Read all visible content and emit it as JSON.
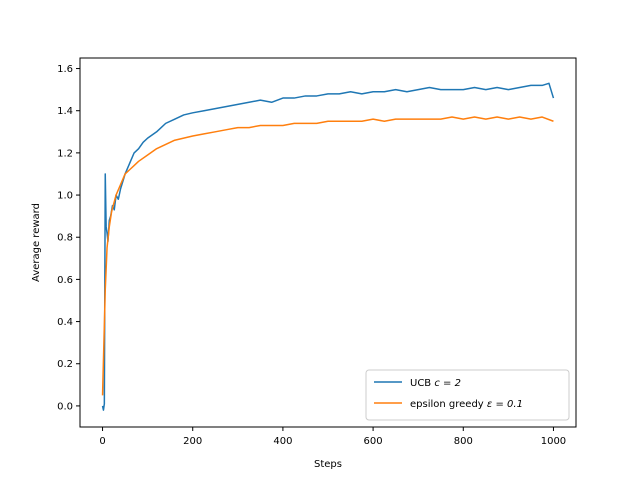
{
  "chart_data": {
    "type": "line",
    "title": "",
    "xlabel": "Steps",
    "ylabel": "Average reward",
    "xlim": [
      -50,
      1050
    ],
    "ylim": [
      -0.1,
      1.65
    ],
    "xticks": [
      0,
      200,
      400,
      600,
      800,
      1000
    ],
    "yticks": [
      0.0,
      0.2,
      0.4,
      0.6,
      0.8,
      1.0,
      1.2,
      1.4,
      1.6
    ],
    "grid": false,
    "legend_position": "lower-right",
    "series": [
      {
        "name": "UCB c = 2",
        "name_prefix": "UCB ",
        "name_math": "c = 2",
        "color": "#1f77b4",
        "x": [
          0,
          2,
          4,
          6,
          8,
          10,
          12,
          15,
          18,
          22,
          26,
          30,
          35,
          40,
          50,
          60,
          70,
          80,
          90,
          100,
          120,
          140,
          160,
          180,
          200,
          225,
          250,
          275,
          300,
          325,
          350,
          375,
          400,
          425,
          450,
          475,
          500,
          525,
          550,
          575,
          600,
          625,
          650,
          675,
          700,
          725,
          750,
          775,
          800,
          825,
          850,
          875,
          900,
          925,
          950,
          975,
          990,
          1000
        ],
        "values": [
          0.0,
          -0.02,
          0.01,
          1.1,
          0.85,
          0.82,
          0.78,
          0.88,
          0.9,
          0.95,
          0.93,
          1.0,
          0.98,
          1.03,
          1.1,
          1.15,
          1.2,
          1.22,
          1.25,
          1.27,
          1.3,
          1.34,
          1.36,
          1.38,
          1.39,
          1.4,
          1.41,
          1.42,
          1.43,
          1.44,
          1.45,
          1.44,
          1.46,
          1.46,
          1.47,
          1.47,
          1.48,
          1.48,
          1.49,
          1.48,
          1.49,
          1.49,
          1.5,
          1.49,
          1.5,
          1.51,
          1.5,
          1.5,
          1.5,
          1.51,
          1.5,
          1.51,
          1.5,
          1.51,
          1.52,
          1.52,
          1.53,
          1.46
        ]
      },
      {
        "name": "epsilon greedy ε = 0.1",
        "name_prefix": "epsilon greedy ",
        "name_math": "ε = 0.1",
        "color": "#ff7f0e",
        "x": [
          0,
          3,
          6,
          10,
          15,
          20,
          25,
          30,
          40,
          50,
          60,
          70,
          80,
          100,
          120,
          140,
          160,
          180,
          200,
          225,
          250,
          275,
          300,
          325,
          350,
          375,
          400,
          425,
          450,
          475,
          500,
          525,
          550,
          575,
          600,
          625,
          650,
          675,
          700,
          725,
          750,
          775,
          800,
          825,
          850,
          875,
          900,
          925,
          950,
          975,
          1000
        ],
        "values": [
          0.05,
          0.3,
          0.55,
          0.75,
          0.85,
          0.92,
          0.96,
          1.0,
          1.05,
          1.1,
          1.12,
          1.14,
          1.16,
          1.19,
          1.22,
          1.24,
          1.26,
          1.27,
          1.28,
          1.29,
          1.3,
          1.31,
          1.32,
          1.32,
          1.33,
          1.33,
          1.33,
          1.34,
          1.34,
          1.34,
          1.35,
          1.35,
          1.35,
          1.35,
          1.36,
          1.35,
          1.36,
          1.36,
          1.36,
          1.36,
          1.36,
          1.37,
          1.36,
          1.37,
          1.36,
          1.37,
          1.36,
          1.37,
          1.36,
          1.37,
          1.35
        ]
      }
    ]
  }
}
